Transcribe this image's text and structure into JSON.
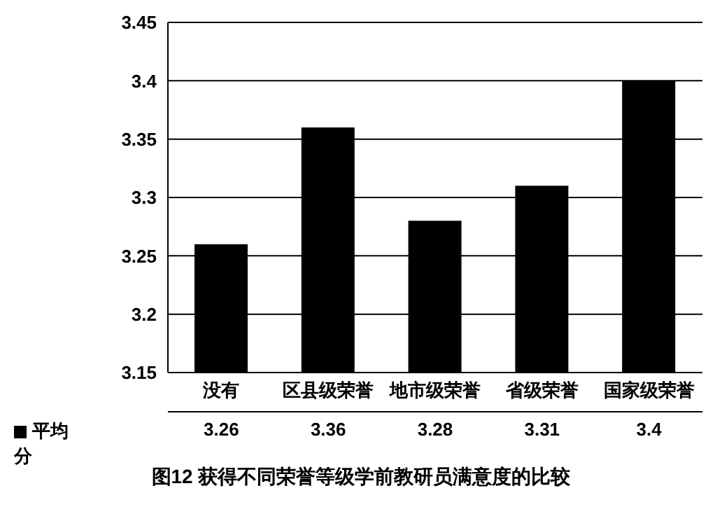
{
  "chart_data": {
    "type": "bar",
    "title": "图12 获得不同荣誉等级学前教研员满意度的比较",
    "categories": [
      "没有",
      "区县级荣誉",
      "地市级荣誉",
      "省级荣誉",
      "国家级荣誉"
    ],
    "series": [
      {
        "name": "平均分",
        "color": "#000000",
        "values": [
          3.26,
          3.36,
          3.28,
          3.31,
          3.4
        ]
      }
    ],
    "ylim": [
      3.15,
      3.45
    ],
    "yticks": [
      3.15,
      3.2,
      3.25,
      3.3,
      3.35,
      3.4,
      3.45
    ],
    "grid": "y",
    "legend": "bottom left",
    "data_labels": true
  }
}
